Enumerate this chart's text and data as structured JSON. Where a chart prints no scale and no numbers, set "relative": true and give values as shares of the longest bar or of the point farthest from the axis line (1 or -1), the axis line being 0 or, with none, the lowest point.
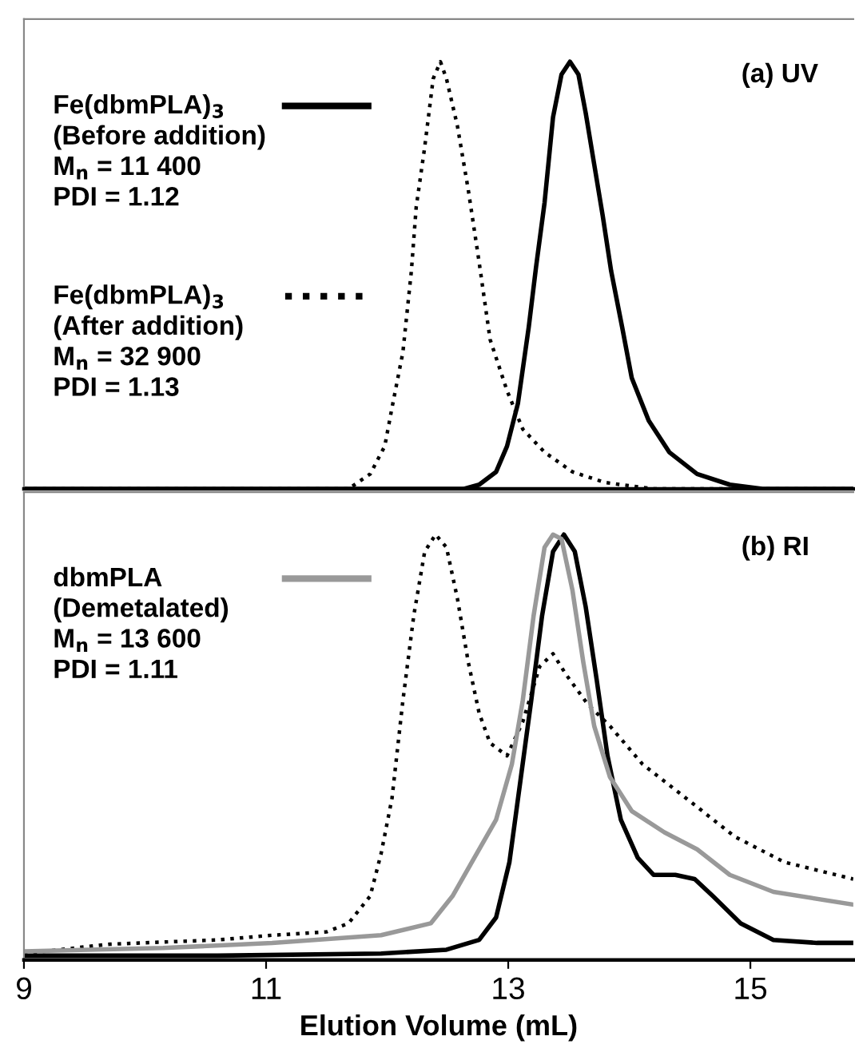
{
  "chart_data": [
    {
      "type": "line",
      "relative": true,
      "xlim": [
        9,
        15.85
      ],
      "tick_labels": false,
      "legend": "left",
      "annotations": [
        "(a) UV"
      ],
      "series": [
        {
          "name": "Fe(dbmPLA)$_{3}$\n(Before addition)\nM$_{n}$ = 11 400\nPDI = 1.12",
          "color": "#000000",
          "line_style": "solid",
          "x": [
            9,
            12.63,
            12.76,
            12.9,
            12.99,
            13.08,
            13.17,
            13.23,
            13.3,
            13.37,
            13.44,
            13.51,
            13.58,
            13.64,
            13.71,
            13.78,
            13.85,
            13.94,
            14.02,
            14.16,
            14.33,
            14.56,
            14.83,
            15.1,
            15.85
          ],
          "values": [
            0,
            0,
            0.01,
            0.04,
            0.1,
            0.2,
            0.38,
            0.52,
            0.67,
            0.87,
            0.97,
            1.0,
            0.97,
            0.88,
            0.76,
            0.64,
            0.51,
            0.38,
            0.26,
            0.16,
            0.086,
            0.035,
            0.01,
            0,
            0
          ]
        },
        {
          "name": "Fe(dbmPLA)$_{3}$\n(After addition)\nM$_{n}$ = 32 900\nPDI = 1.13",
          "color": "#000000",
          "line_style": "dotted",
          "x": [
            9,
            11.68,
            11.86,
            11.98,
            12.04,
            12.13,
            12.2,
            12.24,
            12.31,
            12.38,
            12.44,
            12.49,
            12.58,
            12.67,
            12.76,
            12.85,
            12.99,
            13.12,
            13.3,
            13.53,
            13.8,
            14.2,
            15.85
          ],
          "values": [
            0,
            0,
            0.035,
            0.1,
            0.19,
            0.32,
            0.51,
            0.66,
            0.8,
            0.96,
            1.0,
            0.96,
            0.85,
            0.7,
            0.53,
            0.35,
            0.23,
            0.14,
            0.086,
            0.04,
            0.015,
            0,
            0
          ]
        }
      ]
    },
    {
      "type": "line",
      "relative": true,
      "xlim": [
        9,
        15.85
      ],
      "xticks": [
        9,
        11,
        13,
        15
      ],
      "xlabel": "Elution Volume (mL)",
      "tick_labels": "x",
      "legend": "left",
      "annotations": [
        "(b) RI"
      ],
      "series": [
        {
          "color": "#000000",
          "line_style": "dotted",
          "x": [
            9,
            9.71,
            10.6,
            11.05,
            11.5,
            11.68,
            11.86,
            11.95,
            12.04,
            12.13,
            12.22,
            12.31,
            12.4,
            12.49,
            12.58,
            12.67,
            12.76,
            12.85,
            12.99,
            13.12,
            13.26,
            13.37,
            13.48,
            13.66,
            13.84,
            14.11,
            14.47,
            14.87,
            15.28,
            15.85
          ],
          "values": [
            0.015,
            0.037,
            0.047,
            0.058,
            0.066,
            0.086,
            0.15,
            0.25,
            0.38,
            0.61,
            0.81,
            0.96,
            1.0,
            0.97,
            0.85,
            0.7,
            0.58,
            0.51,
            0.48,
            0.56,
            0.69,
            0.72,
            0.67,
            0.6,
            0.55,
            0.46,
            0.38,
            0.29,
            0.23,
            0.19
          ]
        },
        {
          "color": "#000000",
          "line_style": "solid",
          "x": [
            9,
            10.6,
            11.95,
            12.49,
            12.76,
            12.9,
            13.01,
            13.1,
            13.19,
            13.28,
            13.37,
            13.46,
            13.55,
            13.64,
            13.73,
            13.82,
            13.93,
            14.07,
            14.2,
            14.38,
            14.54,
            14.69,
            14.92,
            15.19,
            15.55,
            15.85
          ],
          "values": [
            0.01,
            0.01,
            0.015,
            0.024,
            0.047,
            0.1,
            0.23,
            0.42,
            0.61,
            0.81,
            0.96,
            1.0,
            0.96,
            0.83,
            0.66,
            0.48,
            0.33,
            0.24,
            0.2,
            0.2,
            0.19,
            0.15,
            0.086,
            0.047,
            0.04,
            0.04
          ]
        },
        {
          "name": "dbmPLA\n(Demetalated)\nM$_{n}$ = 13 600\nPDI = 1.11",
          "color": "#999999",
          "line_style": "solid",
          "x": [
            9,
            10.15,
            11.05,
            11.95,
            12.36,
            12.54,
            12.72,
            12.9,
            13.03,
            13.12,
            13.21,
            13.3,
            13.37,
            13.44,
            13.53,
            13.62,
            13.71,
            13.84,
            14.02,
            14.29,
            14.56,
            14.83,
            15.19,
            15.85
          ],
          "values": [
            0.02,
            0.028,
            0.04,
            0.058,
            0.086,
            0.15,
            0.24,
            0.33,
            0.46,
            0.61,
            0.81,
            0.97,
            1.0,
            0.99,
            0.87,
            0.7,
            0.55,
            0.43,
            0.35,
            0.3,
            0.26,
            0.2,
            0.16,
            0.13
          ]
        }
      ]
    }
  ]
}
